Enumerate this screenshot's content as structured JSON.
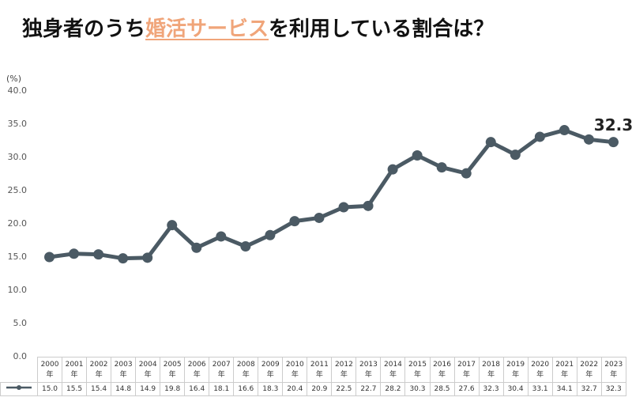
{
  "chart_data": {
    "type": "line",
    "title_parts": [
      "独身者のうち",
      "婚活サービス",
      "を利用している割合は？"
    ],
    "y_label": "(%)",
    "categories": [
      "2000年",
      "2001年",
      "2002年",
      "2003年",
      "2004年",
      "2005年",
      "2006年",
      "2007年",
      "2008年",
      "2009年",
      "2010年",
      "2011年",
      "2012年",
      "2013年",
      "2014年",
      "2015年",
      "2016年",
      "2017年",
      "2018年",
      "2019年",
      "2020年",
      "2021年",
      "2022年",
      "2023年"
    ],
    "values": [
      15.0,
      15.5,
      15.4,
      14.8,
      14.9,
      19.8,
      16.4,
      18.1,
      16.6,
      18.3,
      20.4,
      20.9,
      22.5,
      22.7,
      28.2,
      30.3,
      28.5,
      27.6,
      32.3,
      30.4,
      33.1,
      34.1,
      32.7,
      32.3
    ],
    "value_labels": [
      "15.0",
      "15.5",
      "15.4",
      "14.8",
      "14.9",
      "19.8",
      "16.4",
      "18.1",
      "16.6",
      "18.3",
      "20.4",
      "20.9",
      "22.5",
      "22.7",
      "28.2",
      "30.3",
      "28.5",
      "27.6",
      "32.3",
      "30.4",
      "33.1",
      "34.1",
      "32.7",
      "32.3"
    ],
    "color": "#4b5a64",
    "highlight_color": "#f0a57a",
    "ylim": [
      0,
      40
    ],
    "yticks": [
      {
        "value": 0,
        "label": "0.0"
      },
      {
        "value": 5,
        "label": "5.0"
      },
      {
        "value": 10,
        "label": "10.0"
      },
      {
        "value": 15,
        "label": "15.0"
      },
      {
        "value": 20,
        "label": "20.0"
      },
      {
        "value": 25,
        "label": "25.0"
      },
      {
        "value": 30,
        "label": "30.0"
      },
      {
        "value": 35,
        "label": "35.0"
      },
      {
        "value": 40,
        "label": "40.0"
      }
    ],
    "grid": false
  }
}
